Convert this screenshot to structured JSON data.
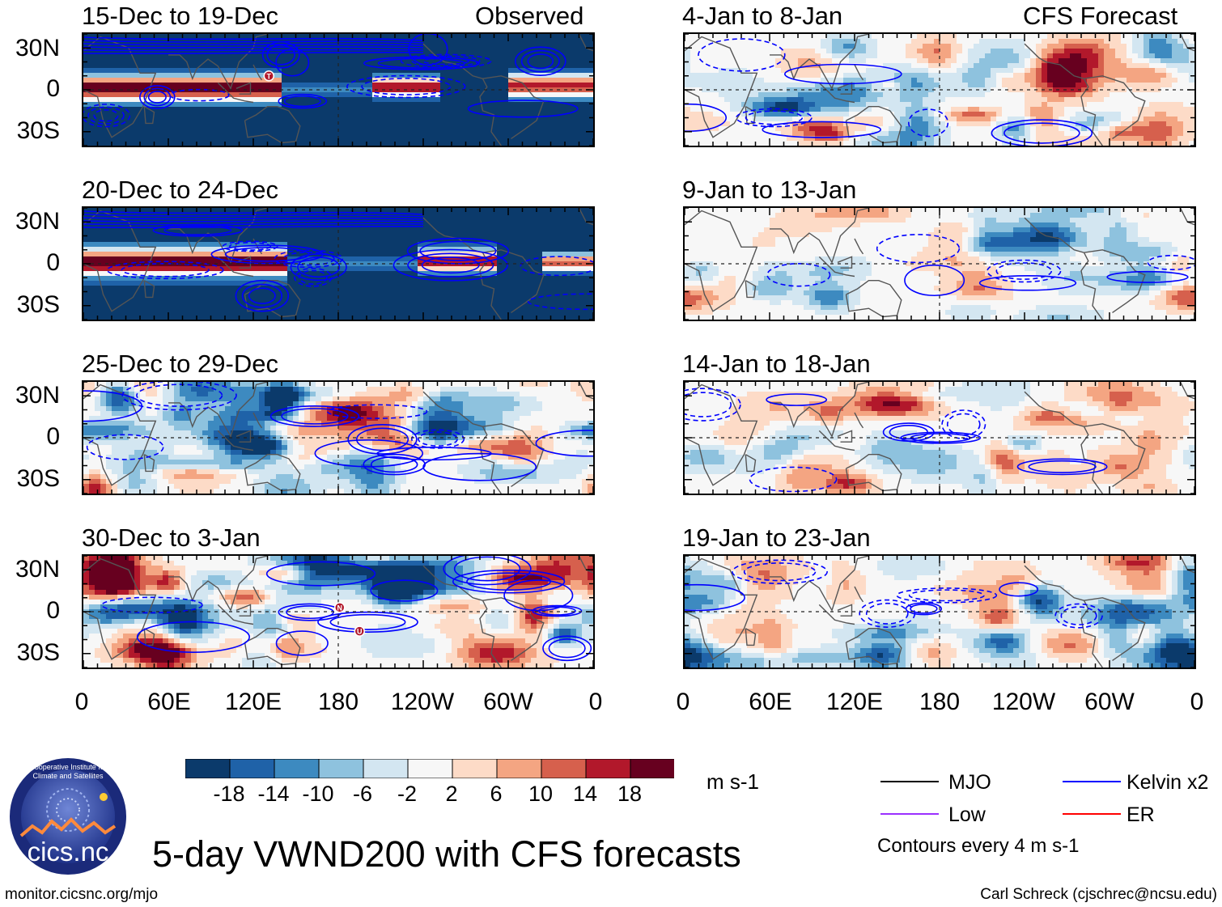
{
  "title": "5-day VWND200 with CFS forecasts",
  "observed_label": "Observed",
  "forecast_label": "CFS Forecast",
  "panels_left": [
    {
      "period": "15-Dec to 19-Dec",
      "style": "strong"
    },
    {
      "period": "20-Dec to 24-Dec",
      "style": "strong"
    },
    {
      "period": "25-Dec to 29-Dec",
      "style": "noisy"
    },
    {
      "period": "30-Dec to 3-Jan",
      "style": "noisy"
    }
  ],
  "panels_right": [
    {
      "period": "4-Jan to 8-Jan",
      "style": "forecast"
    },
    {
      "period": "9-Jan to 13-Jan",
      "style": "forecast"
    },
    {
      "period": "14-Jan to 18-Jan",
      "style": "forecast"
    },
    {
      "period": "19-Jan to 23-Jan",
      "style": "forecast"
    }
  ],
  "lat_labels": [
    "30N",
    "0",
    "30S"
  ],
  "lon_labels": [
    "0",
    "60E",
    "120E",
    "180",
    "120W",
    "60W",
    "0"
  ],
  "storm_markers": [
    {
      "panel": 0,
      "label": "T",
      "lon": 131,
      "lat": 10
    },
    {
      "panel": 3,
      "label": "N",
      "lon": 181,
      "lat": 3
    },
    {
      "panel": 3,
      "label": "U",
      "lon": 195,
      "lat": -14
    }
  ],
  "colorbar": {
    "ticks": [
      "-18",
      "-14",
      "-10",
      "-6",
      "-2",
      "2",
      "6",
      "10",
      "14",
      "18"
    ],
    "colors": [
      "#0b3a6b",
      "#1f62a8",
      "#3d8ac0",
      "#8ec2de",
      "#d3e6f1",
      "#f7f7f7",
      "#fddbc7",
      "#f4a582",
      "#d6604d",
      "#b2182b",
      "#67001f"
    ],
    "units": "m s-1"
  },
  "legend": {
    "items": [
      {
        "label": "MJO",
        "color": "#000000"
      },
      {
        "label": "Kelvin x2",
        "color": "#0000ff"
      },
      {
        "label": "Low",
        "color": "#9b30ff"
      },
      {
        "label": "ER",
        "color": "#ff0000"
      }
    ],
    "note": "Contours every 4 m s-1"
  },
  "logo_text": "cics.nc",
  "logo_ring_text": "Cooperative Institute for Climate and Satellites",
  "footer_left": "monitor.cicsnc.org/mjo",
  "footer_right": "Carl Schreck (cjschrec@ncsu.edu)"
}
